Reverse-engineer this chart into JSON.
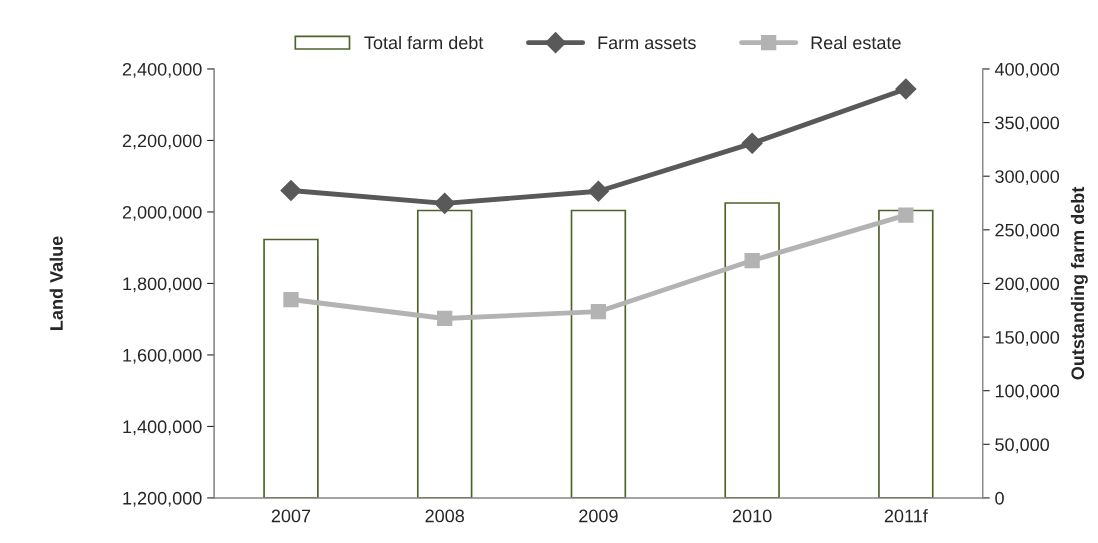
{
  "chart_data": {
    "type": "line",
    "categories": [
      "2007",
      "2008",
      "2009",
      "2010",
      "2011f"
    ],
    "ylabel": "Land Value",
    "y2label": "Outstanding farm debt",
    "ylim": [
      1200000,
      2400000
    ],
    "yticks": [
      {
        "value": 1200000,
        "label": "1,200,000"
      },
      {
        "value": 1400000,
        "label": "1,400,000"
      },
      {
        "value": 1600000,
        "label": "1,600,000"
      },
      {
        "value": 1800000,
        "label": "1,800,000"
      },
      {
        "value": 2000000,
        "label": "2,000,000"
      },
      {
        "value": 2200000,
        "label": "2,200,000"
      },
      {
        "value": 2400000,
        "label": "2,400,000"
      }
    ],
    "y2lim": [
      0,
      400000
    ],
    "y2ticks": [
      0,
      {
        "value": 50000,
        "label": "50,000"
      },
      {
        "value": 100000,
        "label": "100,000"
      },
      {
        "value": 150000,
        "label": "150,000"
      },
      {
        "value": 200000,
        "label": "200,000"
      },
      {
        "value": 250000,
        "label": "250,000"
      },
      {
        "value": 300000,
        "label": "300,000"
      },
      {
        "value": 350000,
        "label": "350,000"
      },
      {
        "value": 400000,
        "label": "400,000"
      }
    ],
    "grid": false,
    "legend": "top",
    "series": [
      {
        "name": "Total farm debt",
        "type": "bar",
        "axis": "y2",
        "color": "#4f6228",
        "values": [
          241000,
          268000,
          268000,
          275000,
          268000
        ]
      },
      {
        "name": "Farm assets",
        "marker": "diamond",
        "color": "#595959",
        "values": [
          2060000,
          2024000,
          2058000,
          2192000,
          2344000
        ]
      },
      {
        "name": "Real estate",
        "marker": "square",
        "color": "#b3b3b3",
        "values": [
          1755000,
          1702000,
          1721000,
          1864000,
          1991000
        ]
      }
    ]
  }
}
